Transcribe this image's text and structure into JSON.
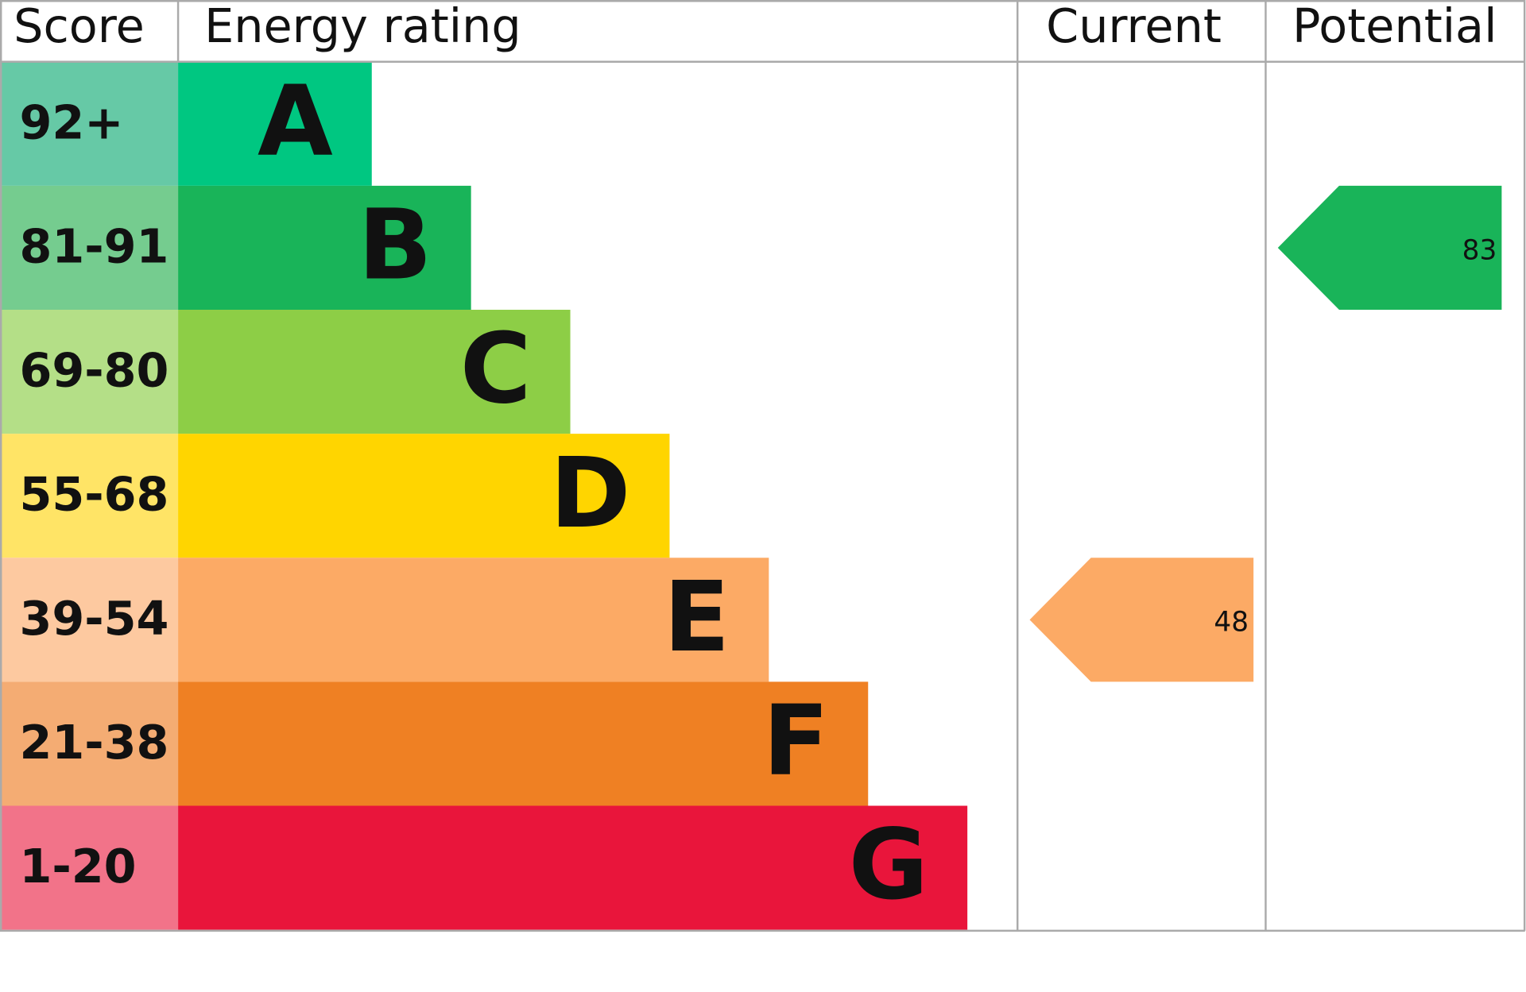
{
  "header": {
    "score": "Score",
    "rating": "Energy rating",
    "current": "Current",
    "potential": "Potential"
  },
  "bands": [
    {
      "score": "92+",
      "letter": "A",
      "color": "#00c781",
      "light_color": "#66c9a6"
    },
    {
      "score": "81-91",
      "letter": "B",
      "color": "#19b459",
      "light_color": "#75cc8f"
    },
    {
      "score": "69-80",
      "letter": "C",
      "color": "#8dce46",
      "light_color": "#b4df87"
    },
    {
      "score": "55-68",
      "letter": "D",
      "color": "#ffd500",
      "light_color": "#ffe466"
    },
    {
      "score": "39-54",
      "letter": "E",
      "color": "#fcaa65",
      "light_color": "#fdc9a0"
    },
    {
      "score": "21-38",
      "letter": "F",
      "color": "#ef8023",
      "light_color": "#f4ac73"
    },
    {
      "score": "1-20",
      "letter": "G",
      "color": "#e9153b",
      "light_color": "#f27389"
    }
  ],
  "current": {
    "value": 48
  },
  "potential": {
    "value": 83
  }
}
